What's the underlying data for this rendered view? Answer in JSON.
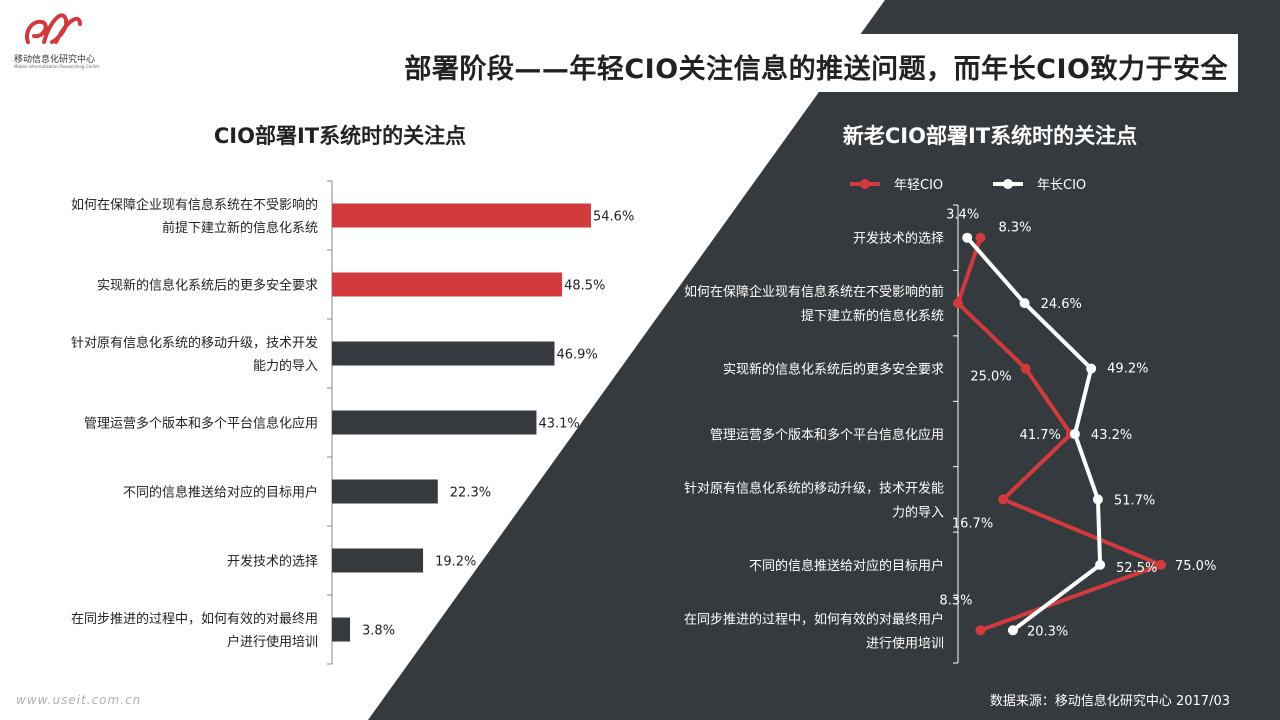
{
  "logo": {
    "name_cn": "移动信息化研究中心",
    "name_en": "Mobile Informatization Researching Center"
  },
  "page_title": "部署阶段——年轻CIO关注信息的推送问题，而年长CIO致力于安全",
  "source": "数据来源：移动信息化研究中心 2017/03",
  "watermark": "www.useit.com.cn",
  "colors": {
    "highlight": "#d13b3e",
    "bar": "#373a3f",
    "dark_bg": "#353a3e",
    "young": "#d13b3e",
    "old": "#ffffff"
  },
  "chart_data": [
    {
      "type": "bar",
      "orientation": "horizontal",
      "title": "CIO部署IT系统时的关注点",
      "categories": [
        [
          "如何在保障企业现有信息系统在不受影响的",
          "前提下建立新的信息化系统"
        ],
        [
          "实现新的信息化系统后的更多安全要求"
        ],
        [
          "针对原有信息化系统的移动升级，技术开发",
          "能力的导入"
        ],
        [
          "管理运营多个版本和多个平台信息化应用"
        ],
        [
          "不同的信息推送给对应的目标用户"
        ],
        [
          "开发技术的选择"
        ],
        [
          "在同步推进的过程中，如何有效的对最终用",
          "户进行使用培训"
        ]
      ],
      "values": [
        54.6,
        48.5,
        46.9,
        43.1,
        22.3,
        19.2,
        3.8
      ],
      "value_labels": [
        "54.6%",
        "48.5%",
        "46.9%",
        "43.1%",
        "22.3%",
        "19.2%",
        "3.8%"
      ],
      "highlighted": [
        true,
        true,
        false,
        false,
        false,
        false,
        false
      ],
      "xlim": [
        0,
        60
      ]
    },
    {
      "type": "line",
      "orientation": "vertical-categories",
      "title": "新老CIO部署IT系统时的关注点",
      "legend_position": "top",
      "categories": [
        [
          "开发技术的选择"
        ],
        [
          "如何在保障企业现有信息系统在不受影响的前",
          "提下建立新的信息化系统"
        ],
        [
          "实现新的信息化系统后的更多安全要求"
        ],
        [
          "管理运营多个版本和多个平台信息化应用"
        ],
        [
          "针对原有信息化系统的移动升级，技术开发能",
          "力的导入"
        ],
        [
          "不同的信息推送给对应的目标用户"
        ],
        [
          "在同步推进的过程中，如何有效的对最终用户",
          "进行使用培训"
        ]
      ],
      "series": [
        {
          "name": "年轻CIO",
          "color": "#d13b3e",
          "values": [
            8.3,
            0,
            25.0,
            41.7,
            16.7,
            75.0,
            8.3
          ],
          "labels": [
            "8.3%",
            "",
            "25.0%",
            "41.7%",
            "16.7%",
            "75.0%",
            "8.3%"
          ]
        },
        {
          "name": "年长CIO",
          "color": "#ffffff",
          "values": [
            3.4,
            24.6,
            49.2,
            43.2,
            51.7,
            52.5,
            20.3
          ],
          "labels": [
            "3.4%",
            "24.6%",
            "49.2%",
            "43.2%",
            "51.7%",
            "52.5%",
            "20.3%"
          ]
        }
      ],
      "xlim": [
        0,
        80
      ]
    }
  ]
}
